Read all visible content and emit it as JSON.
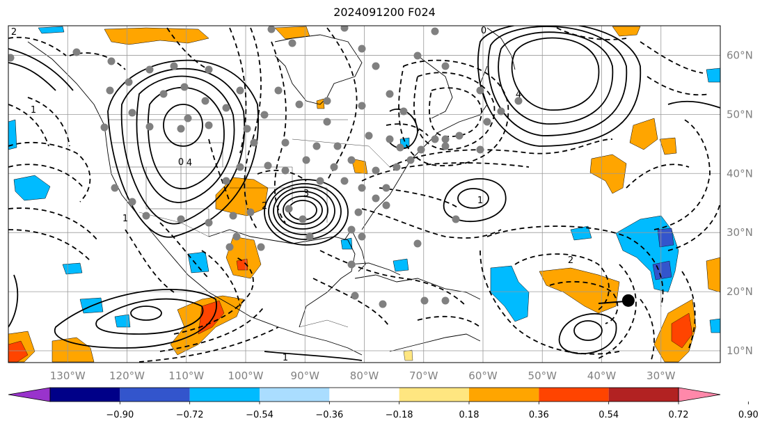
{
  "title": "2024091200 F024",
  "map": {
    "lon_range": [
      -140,
      -20
    ],
    "lat_range": [
      8,
      65
    ],
    "longitude_labels": [
      "130°W",
      "120°W",
      "110°W",
      "100°W",
      "90°W",
      "80°W",
      "70°W",
      "60°W",
      "50°W",
      "40°W",
      "30°W"
    ],
    "longitude_values": [
      -130,
      -120,
      -110,
      -100,
      -90,
      -80,
      -70,
      -60,
      -50,
      -40,
      -30
    ],
    "latitude_labels": [
      "60°N",
      "50°N",
      "40°N",
      "30°N",
      "20°N",
      "10°N"
    ],
    "latitude_values": [
      60,
      50,
      40,
      30,
      20,
      10
    ],
    "gridlines": true,
    "contour_labels": [
      "2",
      "1",
      "0",
      "4",
      "3",
      "2",
      "1",
      "1",
      "4",
      "1",
      "0",
      "2"
    ],
    "marker": {
      "lon": -35.5,
      "lat": 18.5,
      "name": "black-dot"
    }
  },
  "colorbar": {
    "tick_labels": [
      "−0.90",
      "−0.72",
      "−0.54",
      "−0.36",
      "−0.18",
      "0.18",
      "0.36",
      "0.54",
      "0.72",
      "0.90"
    ],
    "colors": [
      "#9933cc",
      "#000088",
      "#3355cc",
      "#00bbff",
      "#aaddff",
      "#ffffff",
      "#ffe680",
      "#ffa500",
      "#ff4400",
      "#b22222",
      "#ff88aa"
    ]
  }
}
